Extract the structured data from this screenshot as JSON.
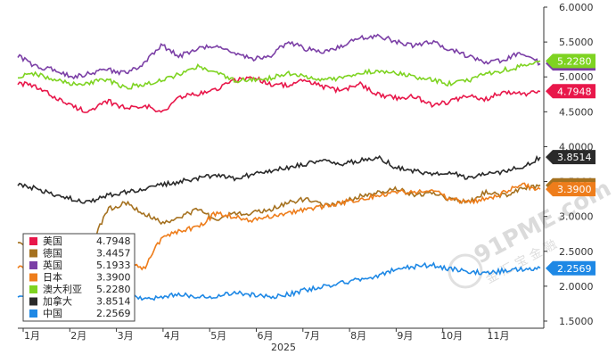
{
  "chart_data": {
    "type": "line",
    "title": "",
    "xlabel": "2025",
    "ylabel": "",
    "ylim": [
      1.5,
      6.0
    ],
    "yticks": [
      "6.0000",
      "5.5000",
      "5.0000",
      "4.5000",
      "4.0000",
      "3.5000",
      "3.0000",
      "2.5000",
      "2.0000",
      "1.5000"
    ],
    "months": [
      "1月",
      "2月",
      "3月",
      "4月",
      "5月",
      "6月",
      "7月",
      "8月",
      "9月",
      "10月",
      "11月"
    ],
    "grid": false,
    "legend_position": "bottom-left",
    "series": [
      {
        "name": "美国",
        "color": "#e8174a",
        "last": "4.7948",
        "anchors": [
          4.92,
          4.85,
          4.72,
          4.58,
          4.5,
          4.65,
          4.55,
          4.6,
          4.48,
          4.72,
          4.75,
          4.82,
          4.95,
          5.0,
          4.9,
          4.88,
          4.95,
          4.85,
          4.8,
          4.9,
          4.75,
          4.7,
          4.72,
          4.6,
          4.65,
          4.72,
          4.68,
          4.8,
          4.75,
          4.79
        ]
      },
      {
        "name": "德国",
        "color": "#a5711f",
        "last": "3.4457",
        "anchors": [
          2.65,
          2.55,
          2.45,
          2.35,
          2.55,
          3.1,
          3.2,
          3.05,
          2.9,
          3.0,
          3.1,
          2.95,
          3.05,
          3.05,
          3.1,
          3.2,
          3.25,
          3.15,
          3.2,
          3.3,
          3.35,
          3.4,
          3.3,
          3.35,
          3.25,
          3.2,
          3.35,
          3.3,
          3.4,
          3.45
        ]
      },
      {
        "name": "英国",
        "color": "#7b3fa6",
        "last": "5.1933",
        "anchors": [
          5.3,
          5.15,
          5.1,
          5.0,
          5.05,
          5.1,
          5.05,
          5.2,
          5.45,
          5.3,
          5.4,
          5.45,
          5.35,
          5.25,
          5.3,
          5.5,
          5.4,
          5.35,
          5.45,
          5.55,
          5.6,
          5.5,
          5.45,
          5.5,
          5.4,
          5.3,
          5.2,
          5.25,
          5.35,
          5.19
        ]
      },
      {
        "name": "日本",
        "color": "#ee7d1b",
        "last": "3.3900",
        "anchors": [
          2.28,
          2.3,
          2.28,
          2.35,
          2.4,
          2.45,
          2.42,
          2.25,
          2.7,
          2.8,
          2.85,
          3.05,
          3.0,
          2.95,
          3.0,
          3.05,
          3.1,
          3.15,
          3.2,
          3.25,
          3.3,
          3.35,
          3.35,
          3.4,
          3.25,
          3.2,
          3.25,
          3.35,
          3.45,
          3.39
        ]
      },
      {
        "name": "澳大利亚",
        "color": "#7ed321",
        "last": "5.2280",
        "anchors": [
          5.0,
          5.05,
          4.95,
          4.9,
          4.92,
          4.95,
          4.85,
          4.9,
          4.95,
          5.05,
          5.15,
          5.05,
          4.95,
          4.95,
          4.98,
          5.05,
          5.0,
          4.95,
          4.98,
          5.05,
          5.1,
          5.05,
          5.0,
          4.95,
          4.9,
          4.95,
          5.05,
          5.1,
          5.15,
          5.23
        ]
      },
      {
        "name": "加拿大",
        "color": "#2a2a2a",
        "last": "3.8514",
        "anchors": [
          3.45,
          3.4,
          3.3,
          3.25,
          3.2,
          3.3,
          3.35,
          3.4,
          3.45,
          3.5,
          3.55,
          3.6,
          3.55,
          3.6,
          3.65,
          3.7,
          3.75,
          3.8,
          3.75,
          3.8,
          3.85,
          3.7,
          3.65,
          3.6,
          3.65,
          3.55,
          3.6,
          3.65,
          3.7,
          3.85
        ]
      },
      {
        "name": "中国",
        "color": "#1e88e5",
        "last": "2.2569",
        "anchors": [
          1.85,
          1.9,
          1.92,
          2.05,
          2.1,
          2.12,
          1.9,
          1.82,
          1.85,
          1.88,
          1.86,
          1.85,
          1.9,
          1.88,
          1.85,
          1.88,
          1.95,
          2.0,
          2.05,
          2.1,
          2.15,
          2.25,
          2.28,
          2.3,
          2.25,
          2.2,
          2.2,
          2.22,
          2.25,
          2.26
        ]
      }
    ]
  },
  "watermark": {
    "brand": "91PME.com",
    "tag": "金 汇 宝 金 融"
  }
}
